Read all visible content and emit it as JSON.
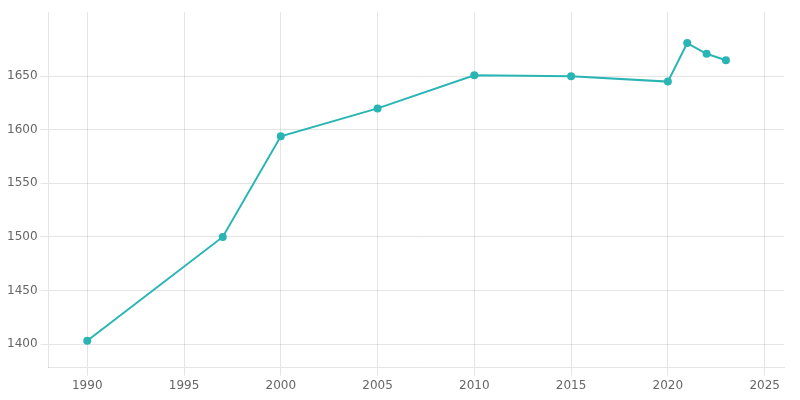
{
  "chart_data": {
    "type": "line",
    "x": [
      1990,
      1997,
      2000,
      2005,
      2010,
      2015,
      2020,
      2021,
      2022,
      2023
    ],
    "values": [
      1403,
      1500,
      1594,
      1620,
      1651,
      1650,
      1645,
      1681,
      1671,
      1665
    ],
    "color": "#2ab5b5",
    "marker": "circle",
    "xlim": [
      1988,
      2026
    ],
    "ylim": [
      1378,
      1710
    ],
    "xticks": [
      1990,
      1995,
      2000,
      2005,
      2010,
      2015,
      2020,
      2025
    ],
    "yticks": [
      1400,
      1450,
      1500,
      1550,
      1600,
      1650
    ],
    "grid": true
  }
}
